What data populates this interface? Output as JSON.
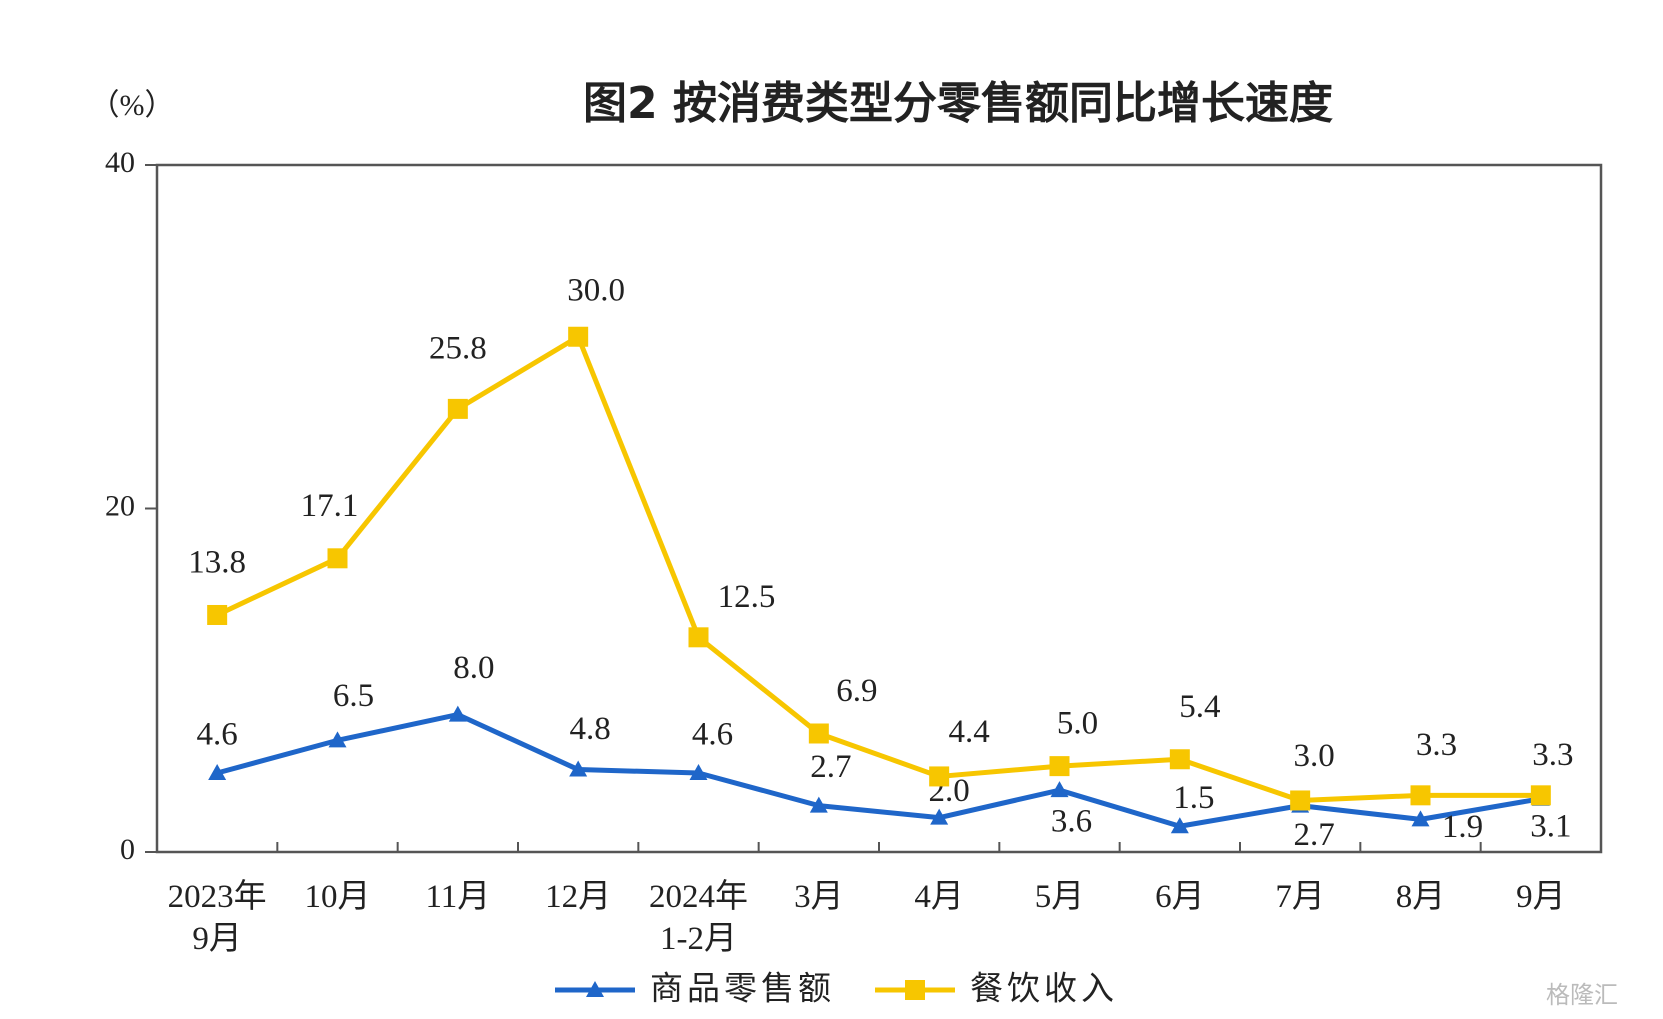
{
  "chart_data": {
    "type": "line",
    "title": "图2  按消费类型分零售额同比增长速度",
    "y_unit_label": "（%）",
    "categories": [
      "2023年\n9月",
      "10月",
      "11月",
      "12月",
      "2024年\n1-2月",
      "3月",
      "4月",
      "5月",
      "6月",
      "7月",
      "8月",
      "9月"
    ],
    "series": [
      {
        "name": "商品零售额",
        "color": "#1f66c9",
        "marker": "triangle",
        "values": [
          4.6,
          6.5,
          8.0,
          4.8,
          4.6,
          2.7,
          2.0,
          3.6,
          1.5,
          2.7,
          1.9,
          3.1
        ],
        "value_labels": [
          "4.6",
          "6.5",
          "8.0",
          "4.8",
          "4.6",
          "2.7",
          "2.0",
          "3.6",
          "1.5",
          "2.7",
          "1.9",
          "3.1"
        ]
      },
      {
        "name": "餐饮收入",
        "color": "#f7c600",
        "marker": "square",
        "values": [
          13.8,
          17.1,
          25.8,
          30.0,
          12.5,
          6.9,
          4.4,
          5.0,
          5.4,
          3.0,
          3.3,
          3.3
        ],
        "value_labels": [
          "13.8",
          "17.1",
          "25.8",
          "30.0",
          "12.5",
          "6.9",
          "4.4",
          "5.0",
          "5.4",
          "3.0",
          "3.3",
          "3.3"
        ]
      }
    ],
    "ylim": [
      0,
      40
    ],
    "yticks": [
      0,
      20,
      40
    ],
    "grid": false,
    "legend": "bottom",
    "watermark": "格隆汇"
  }
}
